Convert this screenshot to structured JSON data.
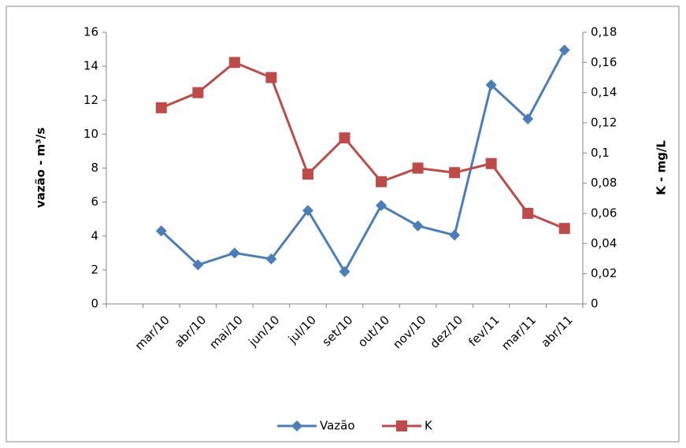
{
  "chart_data": {
    "type": "line",
    "categories": [
      null,
      "mar/10",
      "abr/10",
      "mai/10",
      "jun/10",
      "jul/10",
      "set/10",
      "out/10",
      "nov/10",
      "dez/10",
      "fev/11",
      "mar/11",
      "abr/11"
    ],
    "y_label": "vazão - m³/s",
    "y2_label": "K - mg/L",
    "series": [
      {
        "name": "Vazão",
        "color": "#4a7ebb",
        "marker": "diamond",
        "values": [
          null,
          4.3,
          2.3,
          3.0,
          2.65,
          5.5,
          1.9,
          5.8,
          4.6,
          4.05,
          12.9,
          10.9,
          14.95
        ]
      },
      {
        "name": "K",
        "color": "#be4b48",
        "marker": "square",
        "axis": "y2",
        "values": [
          null,
          0.13,
          0.14,
          0.16,
          0.15,
          0.086,
          0.11,
          0.081,
          0.09,
          0.087,
          0.093,
          0.06,
          0.05
        ]
      }
    ],
    "ylim": [
      0,
      16
    ],
    "yticks": [
      0,
      2,
      4,
      6,
      8,
      10,
      12,
      14,
      16
    ],
    "y2lim": [
      0,
      0.18
    ],
    "y2ticks": [
      0,
      {
        "value": 0.02,
        "label": "0,02"
      },
      {
        "value": 0.04,
        "label": "0,04"
      },
      {
        "value": 0.06,
        "label": "0,06"
      },
      {
        "value": 0.08,
        "label": "0,08"
      },
      {
        "value": 0.1,
        "label": "0,1"
      },
      {
        "value": 0.12,
        "label": "0,12"
      },
      {
        "value": 0.14,
        "label": "0,14"
      },
      {
        "value": 0.16,
        "label": "0,16"
      },
      {
        "value": 0.18,
        "label": "0,18"
      }
    ],
    "grid": false,
    "legend": "bottom"
  }
}
